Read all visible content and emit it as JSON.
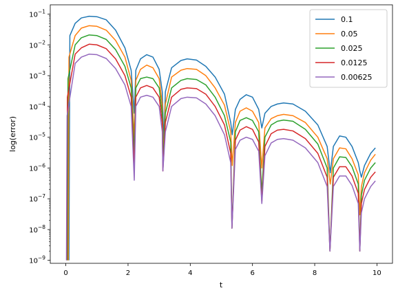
{
  "chart_data": {
    "type": "line",
    "xlabel": "t",
    "ylabel": "log(error)",
    "xlim": [
      -0.5,
      10.5
    ],
    "ylim": [
      8e-10,
      0.2
    ],
    "yscale": "log",
    "grid": false,
    "legend_position": "top-right",
    "x_ticks": [
      0,
      2,
      4,
      6,
      8,
      10
    ],
    "x_tick_labels": [
      "0",
      "2",
      "4",
      "6",
      "8",
      "10"
    ],
    "y_ticks": [
      1e-09,
      1e-08,
      1e-07,
      1e-06,
      1e-05,
      0.0001,
      0.001,
      0.01,
      0.1
    ],
    "y_tick_labels": [
      "10^-9",
      "10^-8",
      "10^-7",
      "10^-6",
      "10^-5",
      "10^-4",
      "10^-3",
      "10^-2",
      "10^-1"
    ],
    "series": [
      {
        "name": "0.1",
        "color": "#1f77b4",
        "points": [
          [
            0.1,
            1e-09
          ],
          [
            0.13,
            0.02
          ],
          [
            0.3,
            0.05
          ],
          [
            0.5,
            0.075
          ],
          [
            0.75,
            0.085
          ],
          [
            1.0,
            0.082
          ],
          [
            1.3,
            0.065
          ],
          [
            1.6,
            0.03
          ],
          [
            1.9,
            0.008
          ],
          [
            2.1,
            0.0015
          ],
          [
            2.2,
            6e-05
          ],
          [
            2.25,
            0.0015
          ],
          [
            2.4,
            0.0035
          ],
          [
            2.6,
            0.0048
          ],
          [
            2.8,
            0.004
          ],
          [
            3.0,
            0.0016
          ],
          [
            3.1,
            0.0003
          ],
          [
            3.15,
            7e-06
          ],
          [
            3.2,
            0.0003
          ],
          [
            3.4,
            0.0018
          ],
          [
            3.7,
            0.0031
          ],
          [
            3.9,
            0.0035
          ],
          [
            4.2,
            0.0032
          ],
          [
            4.5,
            0.002
          ],
          [
            4.8,
            0.0009
          ],
          [
            5.1,
            0.00025
          ],
          [
            5.3,
            3e-05
          ],
          [
            5.35,
            1.2e-05
          ],
          [
            5.45,
            8e-05
          ],
          [
            5.6,
            0.00017
          ],
          [
            5.8,
            0.00024
          ],
          [
            6.0,
            0.0002
          ],
          [
            6.2,
            8e-05
          ],
          [
            6.3,
            2e-05
          ],
          [
            6.4,
            6e-05
          ],
          [
            6.6,
            0.0001
          ],
          [
            6.8,
            0.00012
          ],
          [
            7.0,
            0.00013
          ],
          [
            7.3,
            0.00012
          ],
          [
            7.7,
            7e-05
          ],
          [
            8.1,
            2.5e-05
          ],
          [
            8.4,
            5e-06
          ],
          [
            8.5,
            7e-07
          ],
          [
            8.6,
            5e-06
          ],
          [
            8.8,
            1.1e-05
          ],
          [
            9.0,
            1e-05
          ],
          [
            9.2,
            5e-06
          ],
          [
            9.4,
            1.5e-06
          ],
          [
            9.45,
            8e-07
          ],
          [
            9.5,
            5e-07
          ],
          [
            9.6,
            1.2e-06
          ],
          [
            9.8,
            3e-06
          ],
          [
            9.95,
            4.5e-06
          ]
        ]
      },
      {
        "name": "0.05",
        "color": "#ff7f0e",
        "points": [
          [
            0.08,
            1e-09
          ],
          [
            0.1,
            0.004
          ],
          [
            0.3,
            0.02
          ],
          [
            0.5,
            0.035
          ],
          [
            0.75,
            0.042
          ],
          [
            1.0,
            0.04
          ],
          [
            1.3,
            0.03
          ],
          [
            1.6,
            0.014
          ],
          [
            1.9,
            0.004
          ],
          [
            2.1,
            0.0007
          ],
          [
            2.2,
            1e-05
          ],
          [
            2.25,
            0.0007
          ],
          [
            2.4,
            0.0016
          ],
          [
            2.6,
            0.0022
          ],
          [
            2.8,
            0.0018
          ],
          [
            3.0,
            0.0008
          ],
          [
            3.1,
            0.00012
          ],
          [
            3.13,
            2e-06
          ],
          [
            3.2,
            0.00012
          ],
          [
            3.4,
            0.0009
          ],
          [
            3.7,
            0.0015
          ],
          [
            3.9,
            0.0017
          ],
          [
            4.2,
            0.0016
          ],
          [
            4.5,
            0.001
          ],
          [
            4.8,
            0.0004
          ],
          [
            5.1,
            0.00011
          ],
          [
            5.3,
            1.5e-05
          ],
          [
            5.35,
            1.2e-06
          ],
          [
            5.45,
            3e-05
          ],
          [
            5.6,
            7e-05
          ],
          [
            5.8,
            9e-05
          ],
          [
            6.0,
            7e-05
          ],
          [
            6.2,
            3e-05
          ],
          [
            6.3,
            1e-06
          ],
          [
            6.4,
            2e-05
          ],
          [
            6.6,
            4e-05
          ],
          [
            6.8,
            5e-05
          ],
          [
            7.0,
            5.5e-05
          ],
          [
            7.3,
            5e-05
          ],
          [
            7.7,
            3e-05
          ],
          [
            8.1,
            1e-05
          ],
          [
            8.4,
            2e-06
          ],
          [
            8.5,
            3e-07
          ],
          [
            8.6,
            2e-06
          ],
          [
            8.8,
            4.5e-06
          ],
          [
            9.0,
            4.2e-06
          ],
          [
            9.2,
            2e-06
          ],
          [
            9.4,
            6e-07
          ],
          [
            9.45,
            3e-08
          ],
          [
            9.5,
            2.5e-07
          ],
          [
            9.6,
            7e-07
          ],
          [
            9.8,
            1.8e-06
          ],
          [
            9.95,
            2.8e-06
          ]
        ]
      },
      {
        "name": "0.025",
        "color": "#2ca02c",
        "points": [
          [
            0.05,
            1e-09
          ],
          [
            0.07,
            0.0008
          ],
          [
            0.3,
            0.01
          ],
          [
            0.5,
            0.017
          ],
          [
            0.75,
            0.021
          ],
          [
            1.0,
            0.02
          ],
          [
            1.3,
            0.015
          ],
          [
            1.6,
            0.007
          ],
          [
            1.9,
            0.002
          ],
          [
            2.1,
            0.0004
          ],
          [
            2.2,
            3e-06
          ],
          [
            2.25,
            0.0004
          ],
          [
            2.4,
            0.0008
          ],
          [
            2.6,
            0.0009
          ],
          [
            2.8,
            0.0008
          ],
          [
            3.0,
            0.0004
          ],
          [
            3.1,
            6e-05
          ],
          [
            3.12,
            1.5e-06
          ],
          [
            3.2,
            6e-05
          ],
          [
            3.4,
            0.0004
          ],
          [
            3.7,
            0.0007
          ],
          [
            3.9,
            0.0008
          ],
          [
            4.2,
            0.00075
          ],
          [
            4.5,
            0.0005
          ],
          [
            4.8,
            0.0002
          ],
          [
            5.1,
            5e-05
          ],
          [
            5.3,
            7e-06
          ],
          [
            5.34,
            1.1e-08
          ],
          [
            5.45,
            1.5e-05
          ],
          [
            5.6,
            3.5e-05
          ],
          [
            5.8,
            4.3e-05
          ],
          [
            6.0,
            3.5e-05
          ],
          [
            6.2,
            1.5e-05
          ],
          [
            6.3,
            1.5e-07
          ],
          [
            6.4,
            1e-05
          ],
          [
            6.6,
            2.5e-05
          ],
          [
            6.8,
            3.3e-05
          ],
          [
            7.0,
            3.6e-05
          ],
          [
            7.3,
            3.3e-05
          ],
          [
            7.7,
            1.8e-05
          ],
          [
            8.1,
            6e-06
          ],
          [
            8.4,
            1e-06
          ],
          [
            8.49,
            2e-09
          ],
          [
            8.6,
            1e-06
          ],
          [
            8.8,
            2.3e-06
          ],
          [
            9.0,
            2.2e-06
          ],
          [
            9.2,
            1.1e-06
          ],
          [
            9.4,
            3e-07
          ],
          [
            9.45,
            2e-09
          ],
          [
            9.5,
            1.3e-07
          ],
          [
            9.6,
            4e-07
          ],
          [
            9.8,
            1e-06
          ],
          [
            9.95,
            1.5e-06
          ]
        ]
      },
      {
        "name": "0.0125",
        "color": "#d62728",
        "points": [
          [
            0.03,
            1e-09
          ],
          [
            0.05,
            0.0002
          ],
          [
            0.3,
            0.005
          ],
          [
            0.5,
            0.008
          ],
          [
            0.75,
            0.0105
          ],
          [
            1.0,
            0.01
          ],
          [
            1.3,
            0.0075
          ],
          [
            1.6,
            0.0035
          ],
          [
            1.9,
            0.001
          ],
          [
            2.1,
            0.0002
          ],
          [
            2.2,
            1e-06
          ],
          [
            2.25,
            0.0002
          ],
          [
            2.4,
            0.0004
          ],
          [
            2.6,
            0.00048
          ],
          [
            2.8,
            0.0004
          ],
          [
            3.0,
            0.0002
          ],
          [
            3.1,
            3e-05
          ],
          [
            3.12,
            8e-07
          ],
          [
            3.2,
            3e-05
          ],
          [
            3.4,
            0.0002
          ],
          [
            3.7,
            0.00036
          ],
          [
            3.9,
            0.0004
          ],
          [
            4.2,
            0.00038
          ],
          [
            4.5,
            0.00025
          ],
          [
            4.8,
            0.0001
          ],
          [
            5.1,
            2.5e-05
          ],
          [
            5.3,
            3e-06
          ],
          [
            5.34,
            1.1e-08
          ],
          [
            5.45,
            8e-06
          ],
          [
            5.6,
            1.7e-05
          ],
          [
            5.8,
            2.2e-05
          ],
          [
            6.0,
            1.8e-05
          ],
          [
            6.2,
            7e-06
          ],
          [
            6.3,
            8e-08
          ],
          [
            6.4,
            5e-06
          ],
          [
            6.6,
            1.3e-05
          ],
          [
            6.8,
            1.7e-05
          ],
          [
            7.0,
            1.8e-05
          ],
          [
            7.3,
            1.6e-05
          ],
          [
            7.7,
            9e-06
          ],
          [
            8.1,
            3e-06
          ],
          [
            8.4,
            5e-07
          ],
          [
            8.49,
            2e-09
          ],
          [
            8.6,
            5e-07
          ],
          [
            8.8,
            1.1e-06
          ],
          [
            9.0,
            1.1e-06
          ],
          [
            9.2,
            5.5e-07
          ],
          [
            9.4,
            1.5e-07
          ],
          [
            9.45,
            2e-09
          ],
          [
            9.5,
            7e-08
          ],
          [
            9.6,
            2e-07
          ],
          [
            9.8,
            5e-07
          ],
          [
            9.95,
            7.5e-07
          ]
        ]
      },
      {
        "name": "0.00625",
        "color": "#9467bd",
        "points": [
          [
            0.02,
            1e-09
          ],
          [
            0.04,
            5e-05
          ],
          [
            0.3,
            0.0025
          ],
          [
            0.5,
            0.004
          ],
          [
            0.75,
            0.005
          ],
          [
            1.0,
            0.0048
          ],
          [
            1.3,
            0.0036
          ],
          [
            1.6,
            0.0017
          ],
          [
            1.9,
            0.0005
          ],
          [
            2.1,
            0.0001
          ],
          [
            2.2,
            4e-07
          ],
          [
            2.25,
            0.0001
          ],
          [
            2.4,
            0.0002
          ],
          [
            2.6,
            0.00023
          ],
          [
            2.8,
            0.0002
          ],
          [
            3.0,
            0.0001
          ],
          [
            3.1,
            1.5e-05
          ],
          [
            3.12,
            8e-07
          ],
          [
            3.2,
            1.5e-05
          ],
          [
            3.4,
            0.0001
          ],
          [
            3.7,
            0.00018
          ],
          [
            3.9,
            0.0002
          ],
          [
            4.2,
            0.00019
          ],
          [
            4.5,
            0.00012
          ],
          [
            4.8,
            5e-05
          ],
          [
            5.1,
            1.2e-05
          ],
          [
            5.3,
            1.5e-06
          ],
          [
            5.34,
            1.1e-08
          ],
          [
            5.45,
            4e-06
          ],
          [
            5.6,
            8e-06
          ],
          [
            5.8,
            1e-05
          ],
          [
            6.0,
            8.5e-06
          ],
          [
            6.2,
            3.5e-06
          ],
          [
            6.3,
            7e-08
          ],
          [
            6.4,
            2.5e-06
          ],
          [
            6.6,
            6.5e-06
          ],
          [
            6.8,
            8.5e-06
          ],
          [
            7.0,
            9e-06
          ],
          [
            7.3,
            8e-06
          ],
          [
            7.7,
            4.5e-06
          ],
          [
            8.1,
            1.5e-06
          ],
          [
            8.4,
            2.5e-07
          ],
          [
            8.49,
            2e-09
          ],
          [
            8.6,
            2.5e-07
          ],
          [
            8.8,
            5.5e-07
          ],
          [
            9.0,
            5.5e-07
          ],
          [
            9.2,
            2.7e-07
          ],
          [
            9.4,
            7e-08
          ],
          [
            9.45,
            2e-09
          ],
          [
            9.5,
            3.5e-08
          ],
          [
            9.6,
            1e-07
          ],
          [
            9.8,
            2.5e-07
          ],
          [
            9.95,
            3.8e-07
          ]
        ]
      }
    ]
  }
}
